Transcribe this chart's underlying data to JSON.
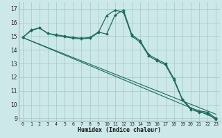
{
  "xlabel": "Humidex (Indice chaleur)",
  "bg_color": "#cce8e8",
  "grid_color": "#aacccc",
  "line_color": "#1a6b5a",
  "xlim": [
    -0.5,
    23.5
  ],
  "ylim": [
    8.8,
    17.5
  ],
  "yticks": [
    9,
    10,
    11,
    12,
    13,
    14,
    15,
    16,
    17
  ],
  "xticks": [
    0,
    1,
    2,
    3,
    4,
    5,
    6,
    7,
    8,
    9,
    10,
    11,
    12,
    13,
    14,
    15,
    16,
    17,
    18,
    19,
    20,
    21,
    22,
    23
  ],
  "series1_x": [
    0,
    1,
    2,
    3,
    4,
    5,
    6,
    7,
    8,
    9,
    10,
    11,
    12,
    13,
    14,
    15,
    16,
    17,
    18,
    19,
    20,
    21,
    22,
    23
  ],
  "series1_y": [
    14.9,
    15.4,
    15.6,
    15.2,
    15.1,
    15.0,
    14.9,
    14.85,
    14.9,
    15.3,
    15.15,
    16.55,
    16.9,
    15.1,
    14.65,
    13.65,
    13.3,
    13.0,
    11.9,
    10.4,
    9.75,
    9.55,
    9.45,
    9.0
  ],
  "series2_x": [
    0,
    1,
    2,
    3,
    4,
    5,
    6,
    7,
    8,
    9,
    10,
    11,
    12,
    13,
    14,
    15,
    16,
    17,
    18,
    19,
    20,
    21,
    22,
    23
  ],
  "series2_y": [
    14.9,
    15.45,
    15.6,
    15.2,
    15.05,
    14.95,
    14.85,
    14.8,
    14.85,
    15.25,
    16.5,
    16.9,
    16.75,
    15.0,
    14.55,
    13.55,
    13.2,
    12.9,
    11.8,
    10.35,
    9.65,
    9.45,
    9.35,
    8.9
  ],
  "line1_x": [
    0,
    23
  ],
  "line1_y": [
    14.9,
    9.0
  ],
  "line2_x": [
    0,
    23
  ],
  "line2_y": [
    14.9,
    9.3
  ]
}
